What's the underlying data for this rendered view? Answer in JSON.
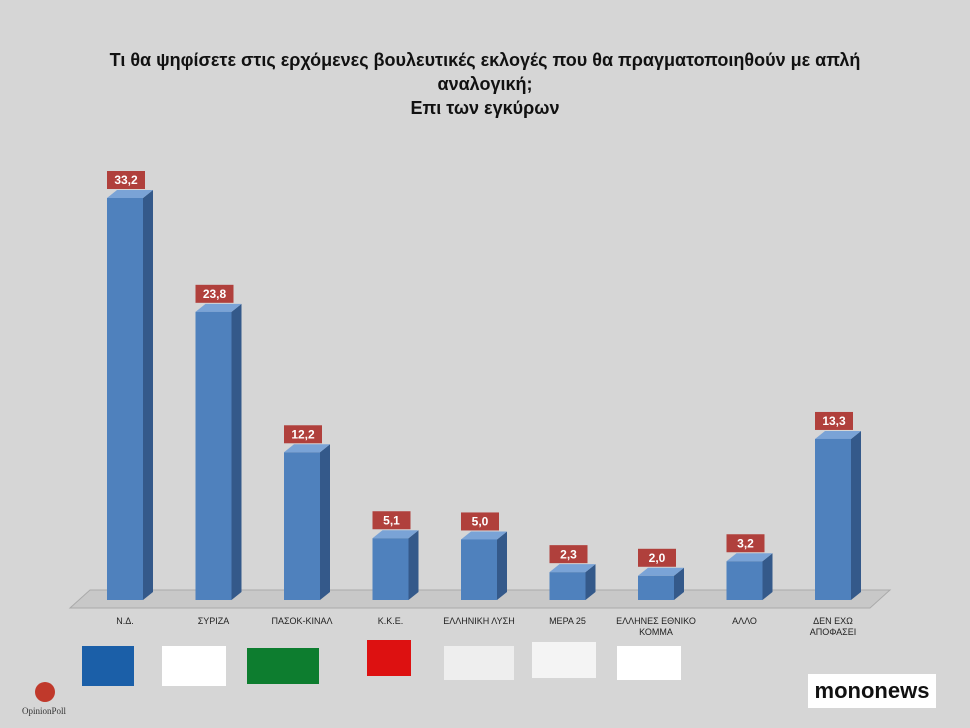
{
  "chart_data": {
    "type": "bar3d",
    "title": "Τι θα ψηφίσετε στις ερχόμενες βουλευτικές εκλογές που θα πραγματοποιηθούν με απλή αναλογική;",
    "subtitle": "Επι των εγκύρων",
    "categories": [
      "Ν.Δ.",
      "ΣΥΡΙΖΑ",
      "ΠΑΣΟΚ-ΚΙΝΑΛ",
      "Κ.Κ.Ε.",
      "ΕΛΛΗΝΙΚΗ ΛΥΣΗ",
      "ΜΕΡΑ 25",
      "ΕΛΛΗΝΕΣ ΕΘΝΙΚΟ ΚΟΜΜΑ",
      "ΑΛΛΟ",
      "ΔΕΝ ΕΧΩ ΑΠΟΦΑΣΕΙ"
    ],
    "values": [
      33.2,
      23.8,
      12.2,
      5.1,
      5.0,
      2.3,
      2.0,
      3.2,
      13.3
    ],
    "value_labels": [
      "33,2",
      "23,8",
      "12,2",
      "5,1",
      "5,0",
      "2,3",
      "2,0",
      "3,2",
      "13,3"
    ],
    "color": "#4f81bd",
    "label_color": "#b0403c"
  },
  "footer": {
    "pollster": "OpinionPoll",
    "brand": "mononews"
  }
}
